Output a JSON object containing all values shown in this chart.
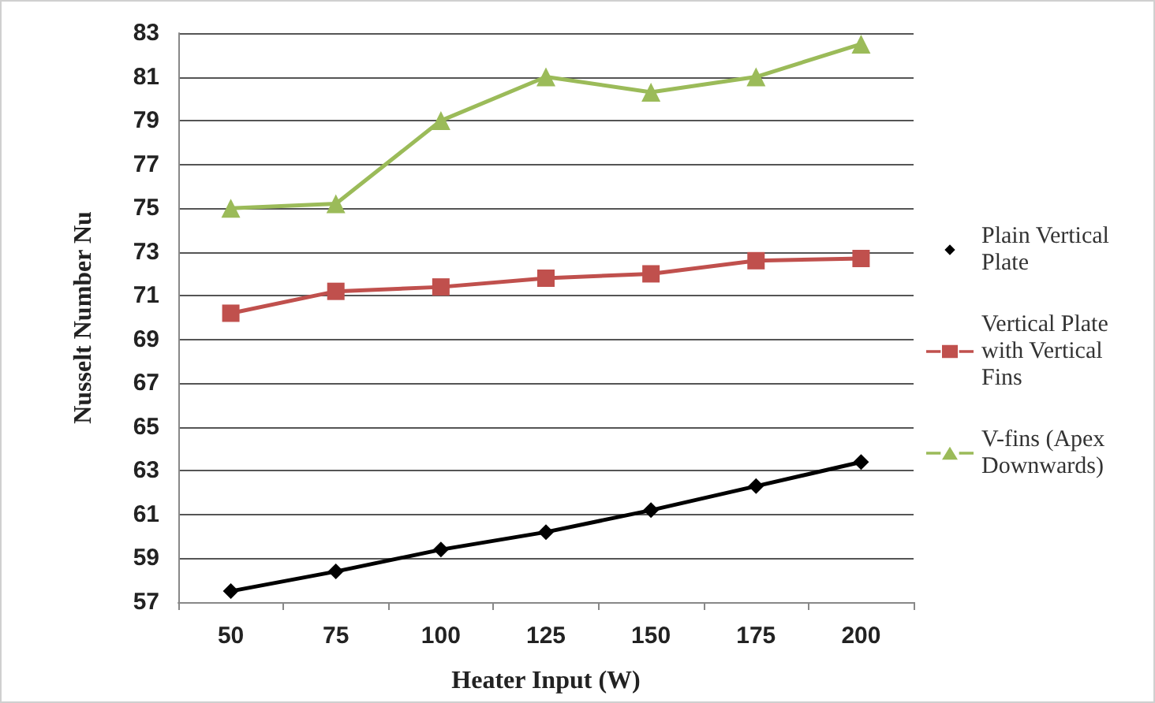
{
  "chart_data": {
    "type": "line",
    "xlabel": "Heater Input (W)",
    "ylabel": "Nusselt Number Nu",
    "categories": [
      "50",
      "75",
      "100",
      "125",
      "150",
      "175",
      "200"
    ],
    "series": [
      {
        "name": "Plain Vertical Plate",
        "color": "#000000",
        "marker": "diamond",
        "values": [
          57.5,
          58.4,
          59.4,
          60.2,
          61.2,
          62.3,
          63.4
        ]
      },
      {
        "name": "Vertical Plate with Vertical Fins",
        "color": "#c0504d",
        "marker": "square",
        "values": [
          70.2,
          71.2,
          71.4,
          71.8,
          72.0,
          72.6,
          72.7
        ]
      },
      {
        "name": "V-fins (Apex Downwards)",
        "color": "#9bbb59",
        "marker": "triangle",
        "values": [
          75.0,
          75.2,
          79.0,
          81.0,
          80.3,
          81.0,
          82.5
        ]
      }
    ],
    "ylim": [
      57,
      83
    ],
    "yticks": [
      57,
      59,
      61,
      63,
      65,
      67,
      69,
      71,
      73,
      75,
      77,
      79,
      81,
      83
    ],
    "grid": "y",
    "legend": "right"
  }
}
